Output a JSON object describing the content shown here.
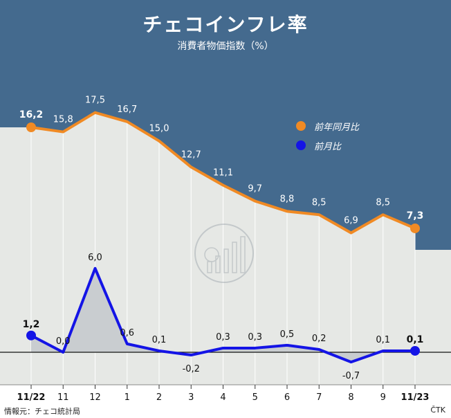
{
  "header": {
    "title": "チェコインフレ率",
    "subtitle": "消費者物価指数（%）"
  },
  "legend": [
    {
      "label": "前年同月比",
      "color": "#f08a24"
    },
    {
      "label": "前月比",
      "color": "#1414e6"
    }
  ],
  "footer": {
    "source": "情報元：チェコ統計局",
    "credit": "ČTK"
  },
  "chart_data": {
    "type": "line",
    "categories": [
      "11/22",
      "11",
      "12",
      "1",
      "2",
      "3",
      "4",
      "5",
      "6",
      "7",
      "8",
      "9",
      "11/23"
    ],
    "series": [
      {
        "name": "前年同月比",
        "color": "#f08a24",
        "values": [
          16.2,
          15.8,
          17.5,
          16.7,
          15.0,
          12.7,
          11.1,
          9.7,
          8.8,
          8.5,
          6.9,
          8.5,
          7.3
        ]
      },
      {
        "name": "前月比",
        "color": "#1414e6",
        "values": [
          1.2,
          0.0,
          6.0,
          0.6,
          0.1,
          -0.2,
          0.3,
          0.3,
          0.5,
          0.2,
          -0.7,
          0.1,
          0.1
        ]
      }
    ],
    "value_labels": {
      "前年同月比": [
        "16,2",
        "15,8",
        "17,5",
        "16,7",
        "15,0",
        "12,7",
        "11,1",
        "9,7",
        "8,8",
        "8,5",
        "6,9",
        "8,5",
        "7,3"
      ],
      "前月比": [
        "1,2",
        "0,0",
        "6,0",
        "0,6",
        "0,1",
        "-0,2",
        "0,3",
        "0,3",
        "0,5",
        "0,2",
        "-0,7",
        "0,1",
        "0,1"
      ]
    },
    "colors": {
      "header_bg": "#446a8e",
      "plot_bg": "#e6e8e5",
      "fill_monthly": "#c9cdd0"
    }
  }
}
